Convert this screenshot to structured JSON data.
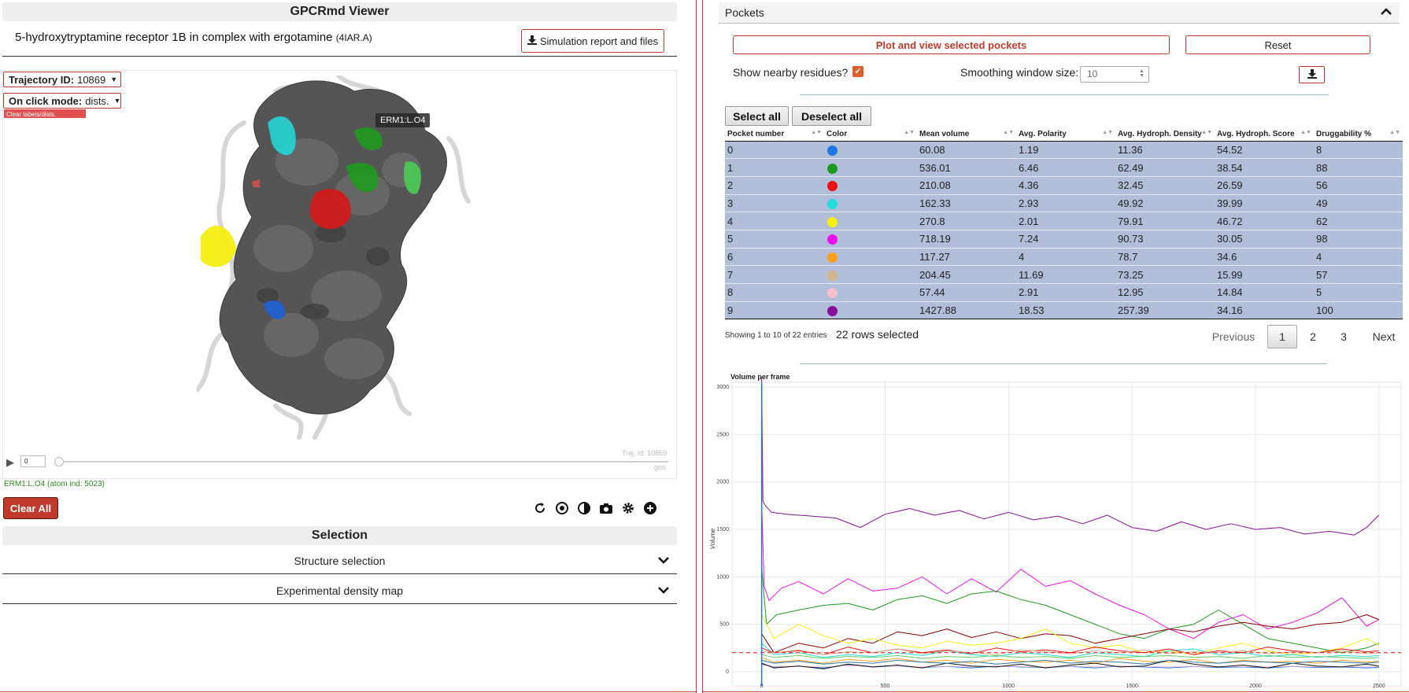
{
  "viewer": {
    "title": "GPCRmd Viewer",
    "simulation_title": "5-hydroxytryptamine receptor 1B in complex with ergotamine ",
    "pdb_code": "(4IAR.A)",
    "report_button_label": "Simulation report and files",
    "trajectory_label": "Trajectory ID:",
    "trajectory_value": "10869",
    "click_mode_label": "On click mode:",
    "click_mode_value": "dists.",
    "clear_labels_label": "Clear labels/dists.",
    "atom_tooltip": "ERM1:L.O4",
    "frame_value": "0",
    "traj_watermark": "Traj. id: 10869",
    "time_unit": "gns",
    "atom_info": "ERM1:L.O4 (atom ind: 5023)",
    "clear_all_label": "Clear All",
    "toolbar_icons": [
      "refresh-icon",
      "center-icon",
      "contrast-icon",
      "camera-icon",
      "gear-icon",
      "plus-circle-icon"
    ]
  },
  "selection": {
    "title": "Selection",
    "structure_selection_label": "Structure selection",
    "density_map_label": "Experimental density map"
  },
  "pockets": {
    "header": "Pockets",
    "plot_button_label": "Plot and view selected pockets",
    "reset_label": "Reset",
    "nearby_residues_label": "Show nearby residues?",
    "nearby_residues_checked": true,
    "smoothing_label": "Smoothing window size:",
    "smoothing_value": "10",
    "select_all_label": "Select all",
    "deselect_all_label": "Deselect all",
    "table": {
      "columns": [
        "Pocket number",
        "Color",
        "Mean volume",
        "Avg. Polarity",
        "Avg. Hydroph. Density",
        "Avg. Hydroph. Score",
        "Druggability %"
      ],
      "rows": [
        {
          "pocket": "0",
          "color": "#1f77e8",
          "mean_volume": "60.08",
          "polarity": "1.19",
          "hydro_density": "11.36",
          "hydro_score": "54.52",
          "druggability": "8"
        },
        {
          "pocket": "1",
          "color": "#1e9a1e",
          "mean_volume": "536.01",
          "polarity": "6.46",
          "hydro_density": "62.49",
          "hydro_score": "38.54",
          "druggability": "88"
        },
        {
          "pocket": "2",
          "color": "#ee1111",
          "mean_volume": "210.08",
          "polarity": "4.36",
          "hydro_density": "32.45",
          "hydro_score": "26.59",
          "druggability": "56"
        },
        {
          "pocket": "3",
          "color": "#22dddd",
          "mean_volume": "162.33",
          "polarity": "2.93",
          "hydro_density": "49.92",
          "hydro_score": "39.99",
          "druggability": "49"
        },
        {
          "pocket": "4",
          "color": "#f4ee11",
          "mean_volume": "270.8",
          "polarity": "2.01",
          "hydro_density": "79.91",
          "hydro_score": "46.72",
          "druggability": "62"
        },
        {
          "pocket": "5",
          "color": "#ee11ee",
          "mean_volume": "718.19",
          "polarity": "7.24",
          "hydro_density": "90.73",
          "hydro_score": "30.05",
          "druggability": "98"
        },
        {
          "pocket": "6",
          "color": "#ff9f1a",
          "mean_volume": "117.27",
          "polarity": "4",
          "hydro_density": "78.7",
          "hydro_score": "34.6",
          "druggability": "4"
        },
        {
          "pocket": "7",
          "color": "#d2b48c",
          "mean_volume": "204.45",
          "polarity": "11.69",
          "hydro_density": "73.25",
          "hydro_score": "15.99",
          "druggability": "57"
        },
        {
          "pocket": "8",
          "color": "#f7c0cc",
          "mean_volume": "57.44",
          "polarity": "2.91",
          "hydro_density": "12.95",
          "hydro_score": "14.84",
          "druggability": "5"
        },
        {
          "pocket": "9",
          "color": "#8a0e9a",
          "mean_volume": "1427.88",
          "polarity": "18.53",
          "hydro_density": "257.39",
          "hydro_score": "34.16",
          "druggability": "100"
        }
      ]
    },
    "showing_entries": "Showing 1 to 10 of 22 entries",
    "rows_selected": "22 rows selected",
    "pagination": {
      "previous": "Previous",
      "pages": [
        "1",
        "2",
        "3"
      ],
      "current": "1",
      "next": "Next"
    }
  },
  "chart_data": {
    "type": "line",
    "title": "Volume per frame",
    "xlabel": "",
    "ylabel": "Volume",
    "xlim": [
      -120,
      2590
    ],
    "ylim": [
      -150,
      3150
    ],
    "xticks": [
      0,
      500,
      1000,
      1500,
      2000,
      2500
    ],
    "yticks": [
      0,
      500,
      1000,
      1500,
      2000,
      2500,
      3000
    ],
    "grid": true,
    "threshold_line": {
      "y": 200,
      "color": "#ee1111",
      "style": "dashed"
    },
    "vertical_marker": {
      "x": 0,
      "color": "#1f77e8"
    },
    "series": [
      {
        "color": "#8a0e9a",
        "x": [
          0,
          5,
          15,
          40,
          100,
          200,
          300,
          400,
          500,
          600,
          700,
          800,
          900,
          1000,
          1100,
          1200,
          1300,
          1400,
          1500,
          1600,
          1700,
          1800,
          1900,
          2000,
          2100,
          2200,
          2300,
          2400,
          2450,
          2500
        ],
        "values": [
          3100,
          1800,
          1750,
          1680,
          1660,
          1640,
          1620,
          1520,
          1660,
          1720,
          1650,
          1700,
          1610,
          1680,
          1600,
          1640,
          1560,
          1650,
          1520,
          1480,
          1580,
          1500,
          1560,
          1500,
          1520,
          1450,
          1480,
          1440,
          1520,
          1650
        ]
      },
      {
        "color": "#ee11ee",
        "x": [
          0,
          10,
          30,
          80,
          150,
          250,
          350,
          450,
          550,
          650,
          750,
          850,
          950,
          1050,
          1150,
          1250,
          1350,
          1450,
          1550,
          1650,
          1750,
          1850,
          1950,
          2050,
          2150,
          2250,
          2350,
          2450,
          2500
        ],
        "values": [
          1800,
          900,
          750,
          880,
          950,
          820,
          980,
          850,
          880,
          1000,
          820,
          980,
          840,
          1080,
          900,
          960,
          820,
          700,
          600,
          450,
          350,
          520,
          600,
          450,
          520,
          620,
          780,
          480,
          550
        ]
      },
      {
        "color": "#1e9a1e",
        "x": [
          0,
          20,
          60,
          150,
          250,
          350,
          450,
          550,
          650,
          750,
          850,
          950,
          1050,
          1150,
          1250,
          1350,
          1450,
          1550,
          1650,
          1750,
          1850,
          1950,
          2050,
          2150,
          2250,
          2350,
          2450,
          2500
        ],
        "values": [
          1100,
          500,
          600,
          650,
          700,
          720,
          650,
          760,
          800,
          720,
          820,
          850,
          760,
          700,
          600,
          500,
          400,
          350,
          450,
          500,
          650,
          500,
          350,
          300,
          250,
          200,
          250,
          300
        ]
      },
      {
        "color": "#8b0000",
        "x": [
          0,
          50,
          150,
          250,
          350,
          450,
          550,
          650,
          750,
          850,
          950,
          1050,
          1150,
          1250,
          1350,
          1450,
          1550,
          1650,
          1750,
          1850,
          1950,
          2050,
          2150,
          2250,
          2350,
          2450,
          2500
        ],
        "values": [
          400,
          200,
          300,
          250,
          350,
          300,
          420,
          380,
          450,
          360,
          420,
          350,
          400,
          380,
          300,
          350,
          400,
          450,
          420,
          480,
          520,
          480,
          450,
          500,
          520,
          600,
          550
        ]
      },
      {
        "color": "#f4ee11",
        "x": [
          0,
          50,
          150,
          250,
          350,
          450,
          550,
          650,
          750,
          850,
          950,
          1050,
          1150,
          1250,
          1350,
          1450,
          1550,
          1650,
          1750,
          1850,
          1950,
          2050,
          2150,
          2250,
          2350,
          2450,
          2500
        ],
        "values": [
          600,
          350,
          500,
          380,
          300,
          350,
          280,
          250,
          320,
          280,
          300,
          350,
          450,
          300,
          250,
          280,
          200,
          220,
          180,
          250,
          300,
          220,
          180,
          200,
          250,
          350,
          280
        ]
      },
      {
        "color": "#22dddd",
        "x": [
          0,
          50,
          150,
          250,
          350,
          450,
          550,
          650,
          750,
          850,
          950,
          1050,
          1150,
          1250,
          1350,
          1450,
          1550,
          1650,
          1750,
          1850,
          1950,
          2050,
          2150,
          2250,
          2350,
          2450,
          2500
        ],
        "values": [
          300,
          180,
          200,
          150,
          180,
          160,
          200,
          170,
          220,
          180,
          160,
          200,
          180,
          150,
          200,
          180,
          160,
          220,
          240,
          180,
          200,
          160,
          180,
          150,
          170,
          160,
          170
        ]
      },
      {
        "color": "#ee1111",
        "x": [
          0,
          50,
          150,
          250,
          350,
          450,
          550,
          650,
          750,
          850,
          950,
          1050,
          1150,
          1250,
          1350,
          1450,
          1550,
          1650,
          1750,
          1850,
          1950,
          2050,
          2150,
          2250,
          2350,
          2450,
          2500
        ],
        "values": [
          250,
          200,
          220,
          180,
          260,
          200,
          240,
          200,
          230,
          190,
          250,
          210,
          230,
          200,
          260,
          220,
          200,
          240,
          180,
          220,
          200,
          260,
          220,
          200,
          240,
          210,
          220
        ]
      },
      {
        "color": "#ff9f1a",
        "x": [
          0,
          50,
          150,
          250,
          350,
          450,
          550,
          650,
          750,
          850,
          950,
          1050,
          1150,
          1250,
          1350,
          1450,
          1550,
          1650,
          1750,
          1850,
          1950,
          2050,
          2150,
          2250,
          2350,
          2450,
          2500
        ],
        "values": [
          150,
          100,
          120,
          90,
          130,
          110,
          140,
          100,
          120,
          90,
          130,
          110,
          100,
          120,
          90,
          140,
          110,
          100,
          130,
          90,
          120,
          100,
          110,
          90,
          120,
          100,
          110
        ]
      },
      {
        "color": "#1f77e8",
        "x": [
          0,
          50,
          150,
          250,
          350,
          450,
          550,
          650,
          750,
          850,
          950,
          1050,
          1150,
          1250,
          1350,
          1450,
          1550,
          1650,
          1750,
          1850,
          1950,
          2050,
          2150,
          2250,
          2350,
          2450,
          2500
        ],
        "values": [
          80,
          50,
          60,
          40,
          70,
          50,
          60,
          45,
          55,
          40,
          60,
          50,
          45,
          55,
          40,
          60,
          50,
          40,
          55,
          45,
          50,
          40,
          55,
          45,
          50,
          40,
          45
        ]
      },
      {
        "color": "#d2b48c",
        "x": [
          0,
          50,
          150,
          250,
          350,
          450,
          550,
          650,
          750,
          850,
          950,
          1050,
          1150,
          1250,
          1350,
          1450,
          1550,
          1650,
          1750,
          1850,
          1950,
          2050,
          2150,
          2250,
          2350,
          2450,
          2500
        ],
        "values": [
          220,
          200,
          230,
          180,
          210,
          200,
          240,
          190,
          220,
          200,
          180,
          230,
          210,
          190,
          220,
          200,
          230,
          190,
          210,
          200,
          220,
          190,
          210,
          200,
          220,
          190,
          200
        ]
      },
      {
        "color": "#f7c0cc",
        "x": [
          0,
          50,
          150,
          250,
          350,
          450,
          550,
          650,
          750,
          850,
          950,
          1050,
          1150,
          1250,
          1350,
          1450,
          1550,
          1650,
          1750,
          1850,
          1950,
          2050,
          2150,
          2250,
          2350,
          2450,
          2500
        ],
        "values": [
          70,
          55,
          60,
          50,
          65,
          55,
          60,
          50,
          58,
          52,
          60,
          55,
          50,
          58,
          52,
          60,
          55,
          50,
          58,
          52,
          56,
          50,
          58,
          52,
          56,
          50,
          55
        ]
      },
      {
        "color": "#111111",
        "x": [
          0,
          50,
          150,
          250,
          350,
          450,
          550,
          650,
          750,
          850,
          950,
          1050,
          1150,
          1250,
          1350,
          1450,
          1550,
          1650,
          1750,
          1850,
          1950,
          2050,
          2150,
          2250,
          2350,
          2450,
          2500
        ],
        "values": [
          90,
          40,
          60,
          30,
          80,
          50,
          70,
          40,
          90,
          60,
          50,
          80,
          40,
          70,
          90,
          50,
          60,
          120,
          80,
          50,
          70,
          40,
          90,
          60,
          50,
          80,
          60
        ]
      },
      {
        "color": "#2a7aa8",
        "x": [
          0,
          50,
          150,
          250,
          350,
          450,
          550,
          650,
          750,
          850,
          950,
          1050,
          1150,
          1250,
          1350,
          1450,
          1550,
          1650,
          1750,
          1850,
          1950,
          2050,
          2150,
          2250,
          2350,
          2450,
          2500
        ],
        "values": [
          120,
          90,
          110,
          80,
          100,
          90,
          120,
          100,
          90,
          110,
          80,
          100,
          120,
          90,
          110,
          100,
          80,
          120,
          100,
          90,
          110,
          100,
          90,
          110,
          100,
          90,
          100
        ]
      },
      {
        "color": "#66cc66",
        "x": [
          0,
          50,
          150,
          250,
          350,
          450,
          550,
          650,
          750,
          850,
          950,
          1050,
          1150,
          1250,
          1350,
          1450,
          1550,
          1650,
          1750,
          1850,
          1950,
          2050,
          2150,
          2250,
          2350,
          2450,
          2500
        ],
        "values": [
          180,
          150,
          170,
          140,
          160,
          150,
          170,
          140,
          160,
          150,
          170,
          150,
          160,
          140,
          170,
          150,
          160,
          170,
          150,
          160,
          140,
          170,
          150,
          160,
          150,
          140,
          150
        ]
      }
    ]
  }
}
